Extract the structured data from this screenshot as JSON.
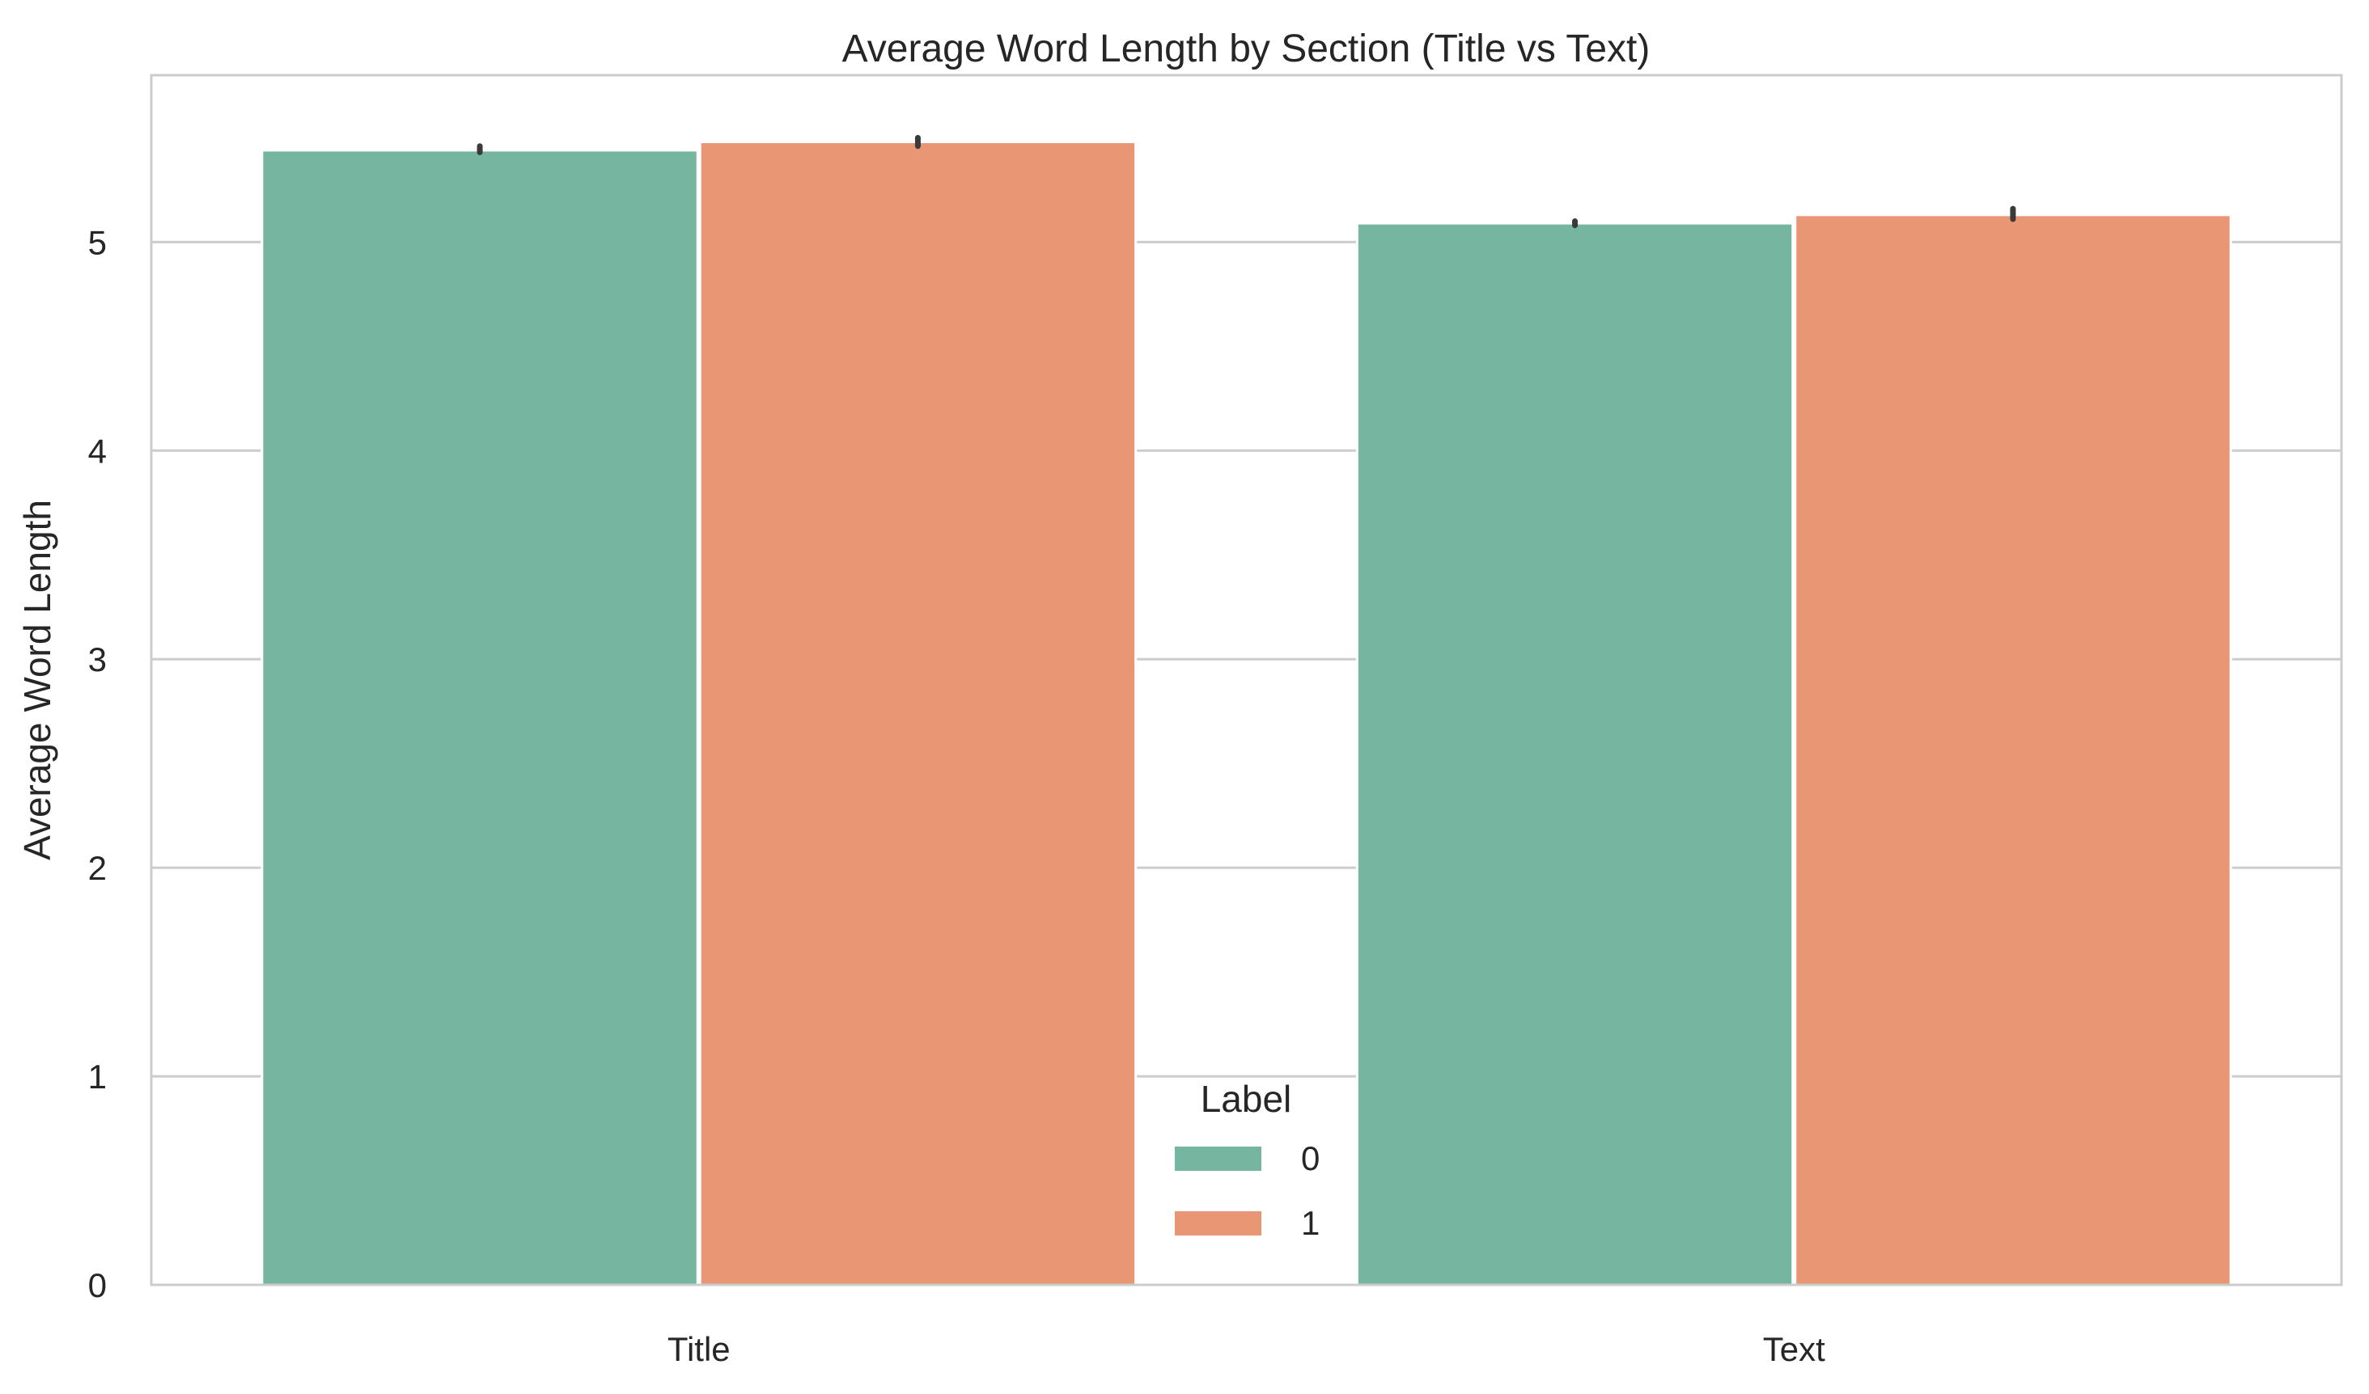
{
  "chart_data": {
    "type": "bar",
    "title": "Average Word Length by Section (Title vs Text)",
    "xlabel": "",
    "ylabel": "Average Word Length",
    "categories": [
      "Title",
      "Text"
    ],
    "ylim": [
      0,
      5.8
    ],
    "yticks": [
      0,
      1,
      2,
      3,
      4,
      5
    ],
    "yticks_text": [
      "0",
      "1",
      "2",
      "3",
      "4",
      "5"
    ],
    "grid": true,
    "legend": {
      "title": "Label",
      "placement": "lower-center"
    },
    "series": [
      {
        "name": "0",
        "color": "#76b5a0",
        "values": [
          5.44,
          5.09
        ],
        "error": [
          [
            5.43,
            5.46
          ],
          [
            5.08,
            5.1
          ]
        ]
      },
      {
        "name": "1",
        "color": "#e99674",
        "values": [
          5.48,
          5.13
        ],
        "error": [
          [
            5.46,
            5.5
          ],
          [
            5.11,
            5.16
          ]
        ]
      }
    ],
    "errorbar_color": "#3a3a3a",
    "gridline_color": "#cccccc",
    "spine_color": "#cccccc"
  }
}
